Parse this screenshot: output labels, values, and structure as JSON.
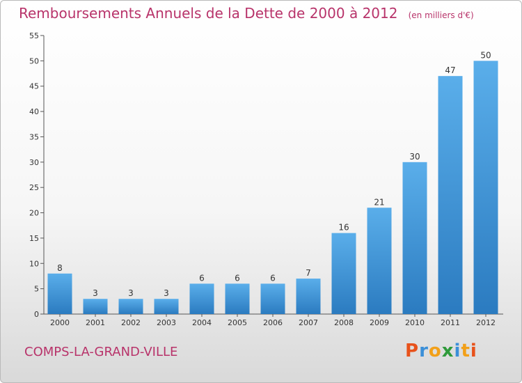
{
  "title": "Remboursements Annuels de la Dette de 2000 à 2012",
  "unit_note": "(en milliers d'€)",
  "commune": "COMPS-LA-GRAND-VILLE",
  "logo": {
    "letters": [
      "P",
      "r",
      "o",
      "x",
      "i",
      "t",
      "i"
    ],
    "colors": [
      "#e8521b",
      "#3b8fd8",
      "#f2a019",
      "#2f9a3a",
      "#3b8fd8",
      "#f2a019",
      "#e8521b"
    ]
  },
  "colors": {
    "bar_light": "#5aaeea",
    "bar_dark": "#2b7bc0",
    "title": "#b8336a"
  },
  "chart_data": {
    "type": "bar",
    "categories": [
      "2000",
      "2001",
      "2002",
      "2003",
      "2004",
      "2005",
      "2006",
      "2007",
      "2008",
      "2009",
      "2010",
      "2011",
      "2012"
    ],
    "values": [
      8,
      3,
      3,
      3,
      6,
      6,
      6,
      7,
      16,
      21,
      30,
      47,
      50
    ],
    "title": "Remboursements Annuels de la Dette de 2000 à 2012",
    "xlabel": "",
    "ylabel": "",
    "ylim": [
      0,
      55
    ],
    "yticks": [
      0,
      5,
      10,
      15,
      20,
      25,
      30,
      35,
      40,
      45,
      50,
      55
    ],
    "grid": false,
    "data_labels": true
  }
}
